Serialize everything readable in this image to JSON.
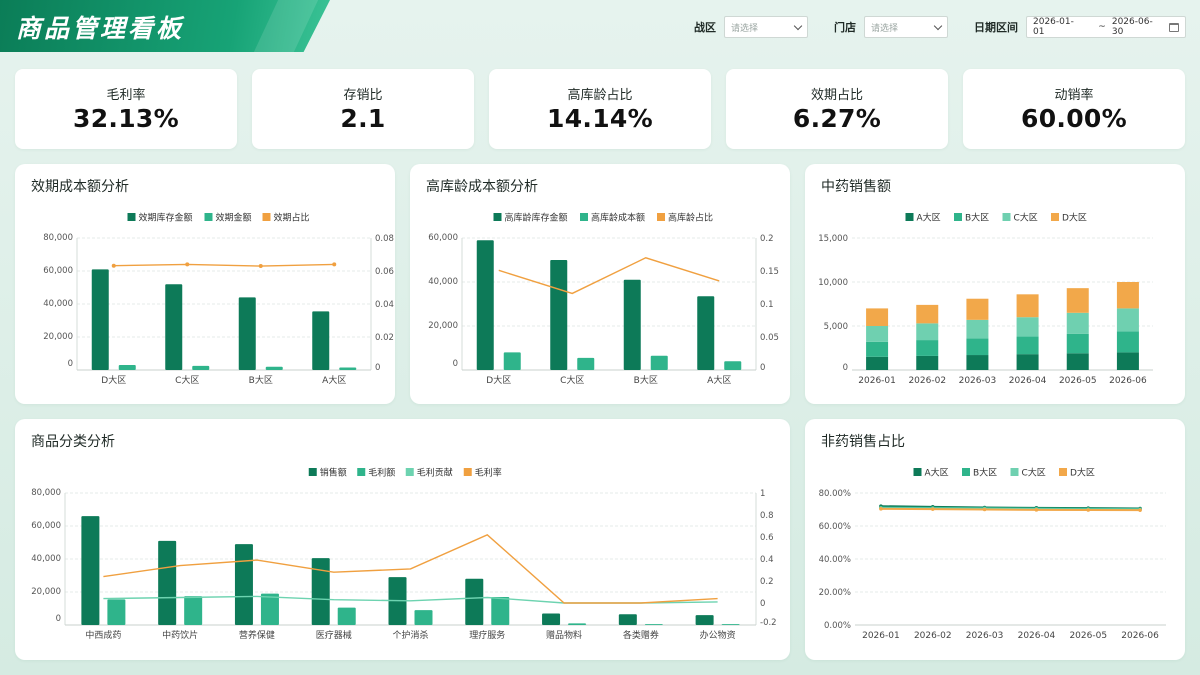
{
  "header": {
    "title": "商品管理看板",
    "filters": {
      "zone_label": "战区",
      "zone_placeholder": "请选择",
      "store_label": "门店",
      "store_placeholder": "请选择",
      "date_label": "日期区间",
      "date_start": "2026-01-01",
      "date_sep": "~",
      "date_end": "2026-06-30"
    }
  },
  "kpis": [
    {
      "label": "毛利率",
      "value": "32.13%"
    },
    {
      "label": "存销比",
      "value": "2.1"
    },
    {
      "label": "高库龄占比",
      "value": "14.14%"
    },
    {
      "label": "效期占比",
      "value": "6.27%"
    },
    {
      "label": "动销率",
      "value": "60.00%"
    }
  ],
  "colors": {
    "dark_green": "#0d7a58",
    "mid_green": "#2fb48b",
    "light_green": "#6fd0b0",
    "orange": "#f2a84a",
    "line_orange": "#f0a040",
    "line_teal": "#6dd3b0"
  },
  "chart_data": [
    {
      "id": "expiry",
      "title": "效期成本额分析",
      "type": "bar",
      "categories": [
        "D大区",
        "C大区",
        "B大区",
        "A大区"
      ],
      "series": [
        {
          "name": "效期库存金额",
          "kind": "bar",
          "axis": "left",
          "color": "#0d7a58",
          "values": [
            61000,
            52000,
            44000,
            35500
          ]
        },
        {
          "name": "效期金额",
          "kind": "bar",
          "axis": "left",
          "color": "#2fb48b",
          "values": [
            3000,
            2500,
            2000,
            1500
          ]
        },
        {
          "name": "效期占比",
          "kind": "line",
          "axis": "right",
          "color": "#f0a040",
          "values": [
            0.0632,
            0.064,
            0.063,
            0.064
          ]
        }
      ],
      "ylim": [
        0,
        80000
      ],
      "yticks": [
        "0",
        "20,000",
        "40,000",
        "60,000",
        "80,000"
      ],
      "y2lim": [
        0,
        0.08
      ],
      "y2ticks": [
        "0",
        "0.02",
        "0.04",
        "0.06",
        "0.08"
      ],
      "legend": "top-center"
    },
    {
      "id": "aging",
      "title": "高库龄成本额分析",
      "type": "bar",
      "categories": [
        "D大区",
        "C大区",
        "B大区",
        "A大区"
      ],
      "series": [
        {
          "name": "高库龄库存金额",
          "kind": "bar",
          "axis": "left",
          "color": "#0d7a58",
          "values": [
            59000,
            50000,
            41000,
            33500
          ]
        },
        {
          "name": "高库龄成本额",
          "kind": "bar",
          "axis": "left",
          "color": "#2fb48b",
          "values": [
            8000,
            5500,
            6500,
            4000
          ]
        },
        {
          "name": "高库龄占比",
          "kind": "line",
          "axis": "right",
          "color": "#f0a040",
          "values": [
            0.151,
            0.116,
            0.17,
            0.135
          ]
        }
      ],
      "ylim": [
        0,
        60000
      ],
      "yticks": [
        "0",
        "20,000",
        "40,000",
        "60,000"
      ],
      "y2lim": [
        0,
        0.2
      ],
      "y2ticks": [
        "0",
        "0.05",
        "0.1",
        "0.15",
        "0.2"
      ],
      "legend": "top-center"
    },
    {
      "id": "tcm-sales",
      "title": "中药销售额",
      "type": "bar",
      "stacked": true,
      "categories": [
        "2026-01",
        "2026-02",
        "2026-03",
        "2026-04",
        "2026-05",
        "2026-06"
      ],
      "series": [
        {
          "name": "A大区",
          "color": "#0d7a58",
          "values": [
            1500,
            1600,
            1700,
            1800,
            1900,
            2000
          ]
        },
        {
          "name": "B大区",
          "color": "#2fb48b",
          "values": [
            1700,
            1800,
            1900,
            2000,
            2200,
            2400
          ]
        },
        {
          "name": "C大区",
          "color": "#6fd0b0",
          "values": [
            1800,
            1900,
            2100,
            2200,
            2400,
            2600
          ]
        },
        {
          "name": "D大区",
          "color": "#f2a84a",
          "values": [
            2000,
            2100,
            2400,
            2600,
            2800,
            3000
          ]
        }
      ],
      "ylim": [
        0,
        15000
      ],
      "yticks": [
        "0",
        "5,000",
        "10,000",
        "15,000"
      ],
      "legend": "top-center"
    },
    {
      "id": "category",
      "title": "商品分类分析",
      "type": "bar",
      "categories": [
        "中西成药",
        "中药饮片",
        "营养保健",
        "医疗器械",
        "个护消杀",
        "理疗服务",
        "赠品物料",
        "各类赠券",
        "办公物资"
      ],
      "series": [
        {
          "name": "销售额",
          "kind": "bar",
          "axis": "left",
          "color": "#0d7a58",
          "values": [
            66000,
            51000,
            49000,
            40500,
            29000,
            28000,
            7000,
            6500,
            6000
          ]
        },
        {
          "name": "毛利额",
          "kind": "bar",
          "axis": "left",
          "color": "#2fb48b",
          "values": [
            15500,
            17500,
            19000,
            10500,
            9000,
            17000,
            1000,
            500,
            500
          ]
        },
        {
          "name": "毛利贡献",
          "kind": "line",
          "axis": "right",
          "color": "#6dd3b0",
          "values": [
            0.04,
            0.05,
            0.06,
            0.03,
            0.02,
            0.05,
            0.0,
            0.0,
            0.01
          ]
        },
        {
          "name": "毛利率",
          "kind": "line",
          "axis": "right",
          "color": "#f0a040",
          "values": [
            0.24,
            0.34,
            0.39,
            0.28,
            0.31,
            0.62,
            0.0,
            0.0,
            0.04
          ]
        }
      ],
      "ylim": [
        0,
        80000
      ],
      "yticks": [
        "0",
        "20,000",
        "40,000",
        "60,000",
        "80,000"
      ],
      "y2lim": [
        -0.2,
        1
      ],
      "y2ticks": [
        "-0.2",
        "0",
        "0.2",
        "0.4",
        "0.6",
        "0.8",
        "1"
      ],
      "legend": "top-center"
    },
    {
      "id": "non-tcm-share",
      "title": "非药销售占比",
      "type": "line",
      "categories": [
        "2026-01",
        "2026-02",
        "2026-03",
        "2026-04",
        "2026-05",
        "2026-06"
      ],
      "series": [
        {
          "name": "A大区",
          "color": "#0d7a58",
          "values": [
            0.72,
            0.716,
            0.712,
            0.71,
            0.708,
            0.706
          ]
        },
        {
          "name": "B大区",
          "color": "#2fb48b",
          "values": [
            0.712,
            0.71,
            0.708,
            0.706,
            0.704,
            0.702
          ]
        },
        {
          "name": "C大区",
          "color": "#6fd0b0",
          "values": [
            0.708,
            0.706,
            0.704,
            0.702,
            0.7,
            0.7
          ]
        },
        {
          "name": "D大区",
          "color": "#f2a84a",
          "values": [
            0.704,
            0.702,
            0.7,
            0.698,
            0.697,
            0.696
          ]
        }
      ],
      "ylim": [
        0,
        0.8
      ],
      "yticks": [
        "0.00%",
        "20.00%",
        "40.00%",
        "60.00%",
        "80.00%"
      ],
      "legend": "top-center"
    }
  ]
}
